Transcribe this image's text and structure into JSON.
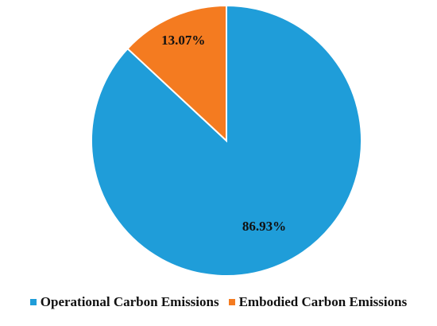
{
  "chart_data": {
    "type": "pie",
    "categories": [
      "Operational Carbon Emissions",
      "Embodied Carbon Emissions"
    ],
    "values": [
      86.93,
      13.07
    ],
    "value_labels": [
      "86.93%",
      "13.07%"
    ],
    "colors": [
      "#1f9dd9",
      "#f47b20"
    ]
  }
}
